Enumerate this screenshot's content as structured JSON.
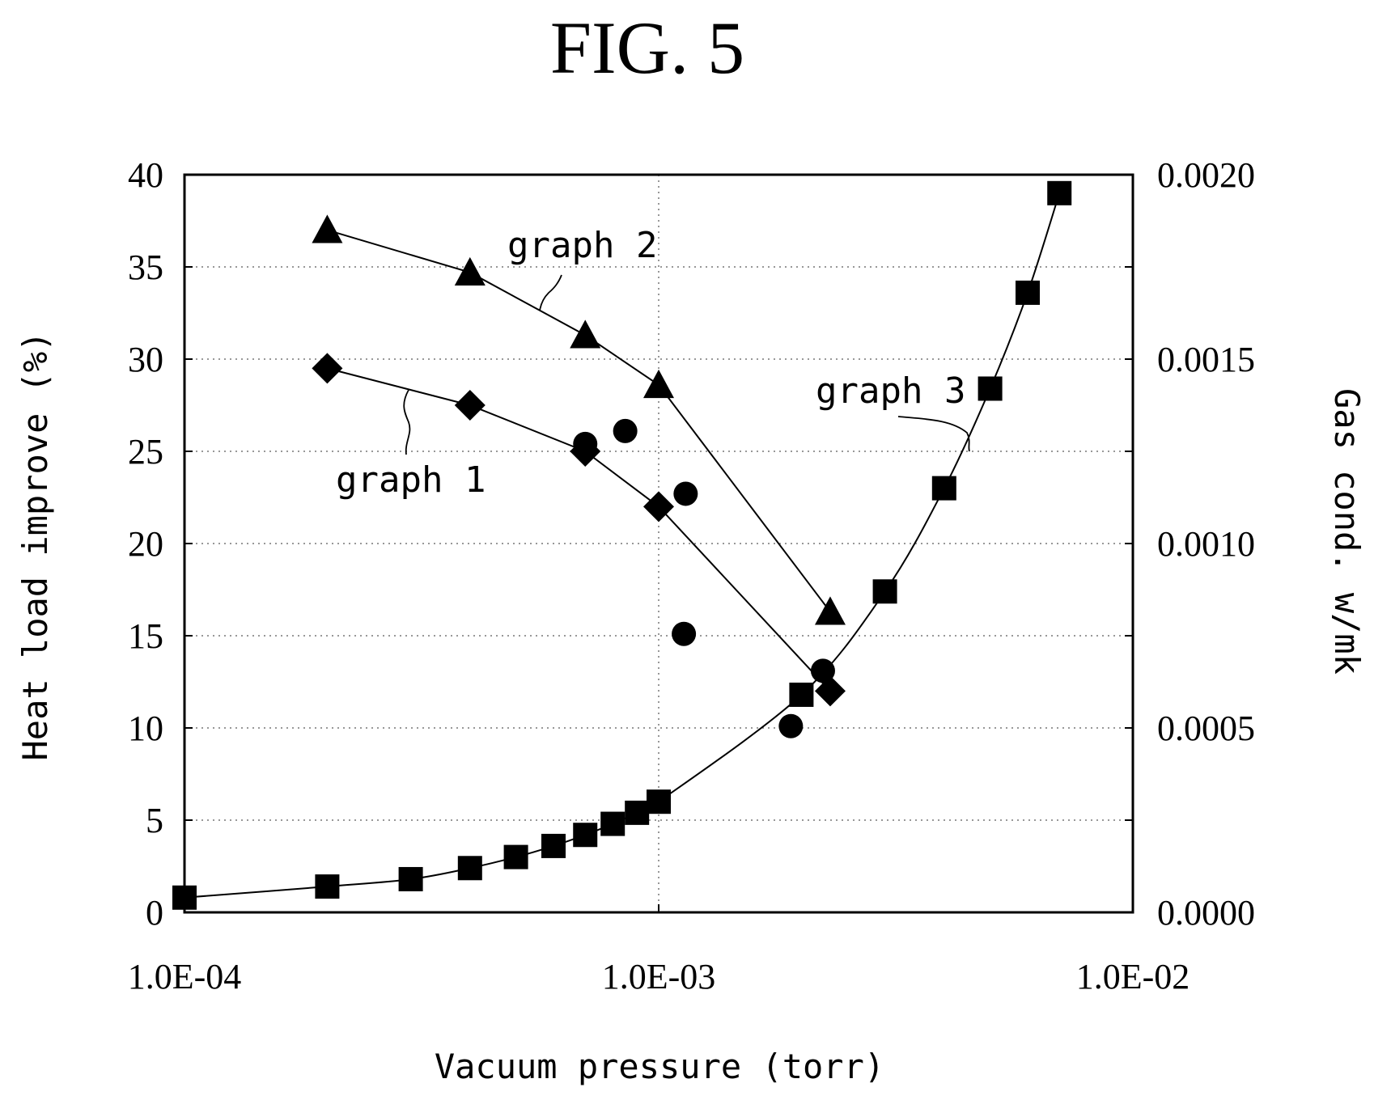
{
  "figure": {
    "title": "FIG. 5"
  },
  "chart_data": {
    "type": "scatter",
    "title": "FIG. 5",
    "xlabel": "Vacuum pressure (torr)",
    "ylabel": "Heat load improve (%)",
    "y2label": "Gas cond. w/mk",
    "xscale": "log",
    "xlim": [
      0.0001,
      0.01
    ],
    "ylim": [
      0,
      40
    ],
    "y2lim": [
      0,
      0.002
    ],
    "grid": true,
    "x_ticks": [
      "1.0E-04",
      "1.0E-03",
      "1.0E-02"
    ],
    "y_ticks": [
      "0",
      "5",
      "10",
      "15",
      "20",
      "25",
      "30",
      "35",
      "40"
    ],
    "y2_ticks": [
      "0.0000",
      "0.0005",
      "0.0010",
      "0.0015",
      "0.0020"
    ],
    "series": [
      {
        "name": "graph 1",
        "marker": "diamond",
        "axis": "left",
        "connected": true,
        "x": [
          0.0002,
          0.0004,
          0.0007,
          0.001,
          0.0023
        ],
        "y": [
          29.5,
          27.5,
          25,
          22,
          12
        ]
      },
      {
        "name": "graph 2",
        "marker": "triangle",
        "axis": "left",
        "connected": true,
        "x": [
          0.0002,
          0.0004,
          0.0007,
          0.001,
          0.0023
        ],
        "y": [
          37,
          34.7,
          31.3,
          28.6,
          16.3
        ]
      },
      {
        "name": "",
        "marker": "circle",
        "axis": "left",
        "connected": false,
        "x": [
          0.0007,
          0.00085,
          0.00114,
          0.00113,
          0.0019,
          0.00222
        ],
        "y": [
          25.4,
          26.1,
          22.7,
          15.1,
          10.1,
          13.1
        ]
      },
      {
        "name": "graph 3",
        "marker": "square",
        "axis": "right",
        "connected": true,
        "curve": true,
        "x": [
          0.0001,
          0.0002,
          0.0003,
          0.0004,
          0.0005,
          0.0006,
          0.0007,
          0.0008,
          0.0009,
          0.001,
          0.002,
          0.003,
          0.004,
          0.005,
          0.006,
          0.007
        ],
        "y": [
          4e-05,
          7e-05,
          9e-05,
          0.00012,
          0.00015,
          0.00018,
          0.00021,
          0.00024,
          0.00027,
          0.0003,
          0.00059,
          0.00087,
          0.00115,
          0.00142,
          0.00168,
          0.00195
        ]
      }
    ]
  }
}
